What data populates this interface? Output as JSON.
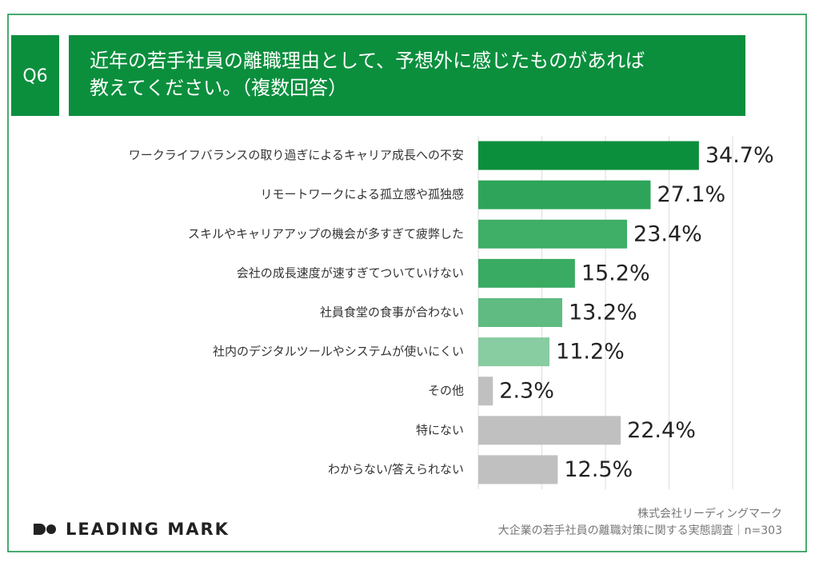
{
  "chart_data": {
    "type": "hbar",
    "question": "Q6",
    "title": [
      "近年の若手社員の離職理由として、予想外に感じたものがあれば",
      "教えてください。（複数回答）"
    ],
    "categories": [
      "ワークライフバランスの取り過ぎによるキャリア成長への不安",
      "リモートワークによる孤立感や孤独感",
      "スキルやキャリアアップの機会が多すぎて疲弊した",
      "会社の成長速度が速すぎてついていけない",
      "社員食堂の食事が合わない",
      "社内のデジタルツールやシステムが使いにくい",
      "その他",
      "特にない",
      "わからない/答えられない"
    ],
    "values": [
      34.7,
      27.1,
      23.4,
      15.2,
      13.2,
      11.2,
      2.3,
      22.4,
      12.5
    ],
    "value_labels": [
      "34.7%",
      "27.1%",
      "23.4%",
      "15.2%",
      "13.2%",
      "11.2%",
      "2.3%",
      "22.4%",
      "12.5%"
    ],
    "colors": [
      "#0b8f3d",
      "#2da459",
      "#3fae67",
      "#3aab63",
      "#5fbb81",
      "#88cca1",
      "#c0c0c0",
      "#c0c0c0",
      "#c0c0c0"
    ],
    "xlim": [
      0,
      40
    ],
    "xticks": [
      0,
      10,
      20,
      30,
      40
    ],
    "grid": true,
    "logo": "LEADING MARK",
    "source": [
      "株式会社リーディングマーク",
      "大企業の若手社員の離職対策に関する実態調査｜n=303"
    ]
  }
}
